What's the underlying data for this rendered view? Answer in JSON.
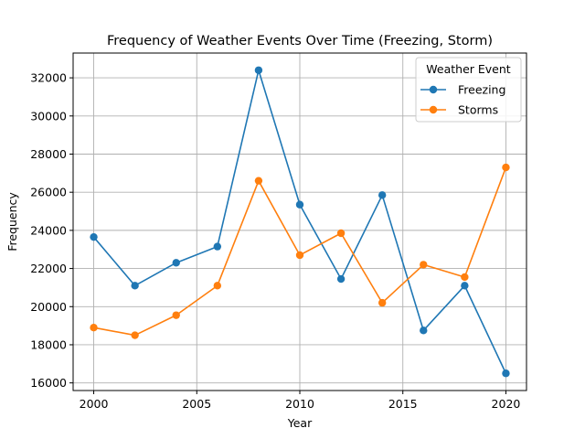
{
  "chart_data": {
    "type": "line",
    "title": "Frequency of Weather Events Over Time (Freezing, Storm)",
    "xlabel": "Year",
    "ylabel": "Frequency",
    "x": [
      2000,
      2002,
      2004,
      2006,
      2008,
      2010,
      2012,
      2014,
      2016,
      2018,
      2020
    ],
    "xlim": [
      1999,
      2021
    ],
    "ylim": [
      15600,
      33300
    ],
    "xticks": [
      2000,
      2005,
      2010,
      2015,
      2020
    ],
    "yticks": [
      16000,
      18000,
      20000,
      22000,
      24000,
      26000,
      28000,
      30000,
      32000
    ],
    "grid": true,
    "legend": {
      "title": "Weather Event",
      "position": "top-right"
    },
    "series": [
      {
        "name": "Freezing",
        "color": "#1f77b4",
        "marker": "circle",
        "values": [
          23650,
          21100,
          22300,
          23150,
          32400,
          25350,
          21450,
          25850,
          18750,
          21100,
          16500
        ]
      },
      {
        "name": "Storms",
        "color": "#ff7f0e",
        "marker": "circle",
        "values": [
          18900,
          18500,
          19550,
          21100,
          26600,
          22700,
          23850,
          20200,
          22200,
          21550,
          27300
        ]
      }
    ]
  }
}
